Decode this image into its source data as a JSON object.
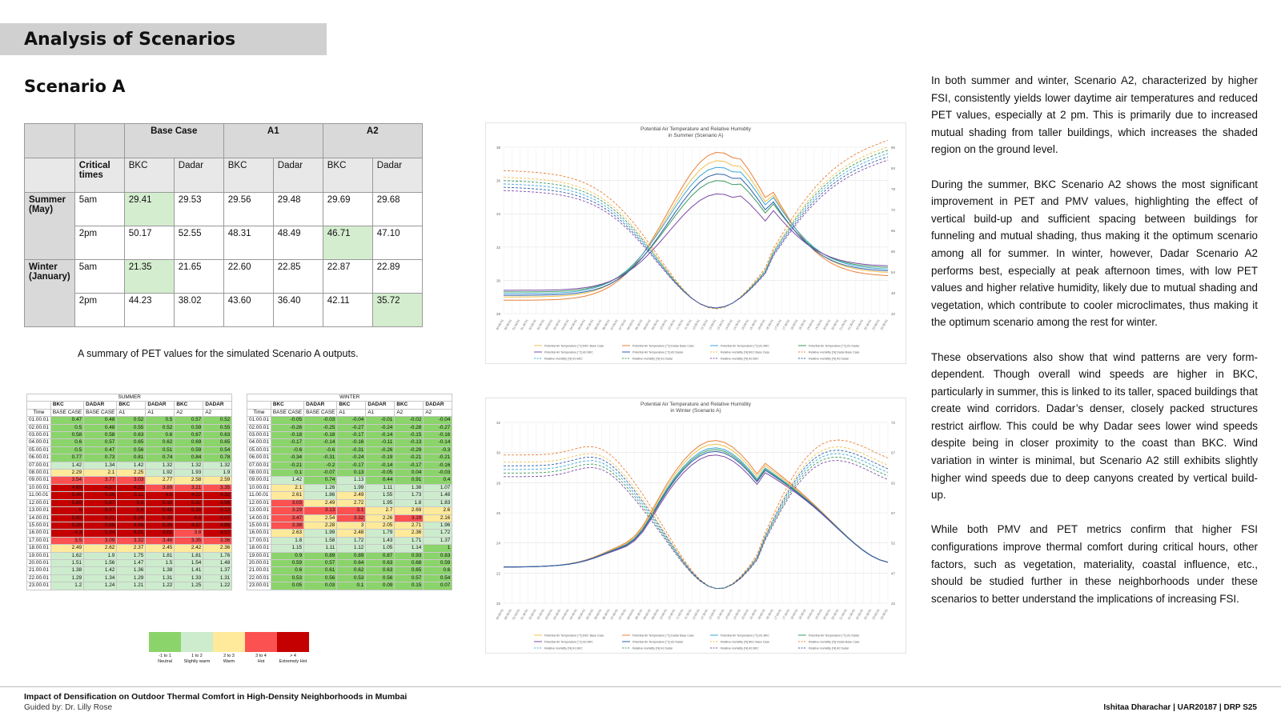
{
  "page_title": "Analysis of Scenarios",
  "section_title": "Scenario A",
  "pet_table": {
    "head1": [
      "",
      "",
      "Base Case",
      "A1",
      "A2"
    ],
    "head2": [
      "Critical times",
      "BKC",
      "Dadar",
      "BKC",
      "Dadar",
      "BKC",
      "Dadar"
    ],
    "rows": [
      {
        "season": "Summer (May)",
        "time": "5am",
        "values": [
          "29.41",
          "29.53",
          "29.56",
          "29.48",
          "29.69",
          "29.68"
        ],
        "highlight": 0
      },
      {
        "season": "",
        "time": "2pm",
        "values": [
          "50.17",
          "52.55",
          "48.31",
          "48.49",
          "46.71",
          "47.10"
        ],
        "highlight": 4
      },
      {
        "season": "Winter (January)",
        "time": "5am",
        "values": [
          "21.35",
          "21.65",
          "22.60",
          "22.85",
          "22.87",
          "22.89"
        ],
        "highlight": 0
      },
      {
        "season": "",
        "time": "2pm",
        "values": [
          "44.23",
          "38.02",
          "43.60",
          "36.40",
          "42.11",
          "35.72"
        ],
        "highlight": 5
      }
    ]
  },
  "table_caption": "A summary of PET values for the simulated Scenario A outputs.",
  "hourly_header": {
    "col1": [
      "BKC",
      "DADAR",
      "BKC",
      "DADAR",
      "BKC",
      "DADAR"
    ],
    "col2": [
      "BASE CASE",
      "BASE CASE",
      "A1",
      "A1",
      "A2",
      "A2"
    ],
    "time_label": "Time"
  },
  "summer_hourly": {
    "title": "SUMMER",
    "times": [
      "01.00.01",
      "02.00.01",
      "03.00.01",
      "04.00.01",
      "05.00.01",
      "06.00.01",
      "07.00.01",
      "08.00.01",
      "09.00.01",
      "10.00.01",
      "11.00.01",
      "12.00.01",
      "13.00.01",
      "14.00.01",
      "15.00.01",
      "16.00.01",
      "17.00.01",
      "18.00.01",
      "19.00.01",
      "20.00.01",
      "21.00.01",
      "22.00.01",
      "23.00.01"
    ],
    "values": [
      [
        "0.47",
        "0.48",
        "0.52",
        "0.5",
        "0.57",
        "0.52"
      ],
      [
        "0.5",
        "0.48",
        "0.55",
        "0.52",
        "0.59",
        "0.55"
      ],
      [
        "0.58",
        "0.58",
        "0.63",
        "0.6",
        "0.67",
        "0.63"
      ],
      [
        "0.6",
        "0.57",
        "0.65",
        "0.62",
        "0.69",
        "0.65"
      ],
      [
        "0.5",
        "0.47",
        "0.56",
        "0.51",
        "0.59",
        "0.54"
      ],
      [
        "0.77",
        "0.73",
        "0.81",
        "0.74",
        "0.84",
        "0.78"
      ],
      [
        "1.42",
        "1.34",
        "1.42",
        "1.32",
        "1.32",
        "1.32"
      ],
      [
        "2.29",
        "2.1",
        "2.25",
        "1.92",
        "1.93",
        "1.9"
      ],
      [
        "3.54",
        "3.77",
        "3.03",
        "2.77",
        "2.58",
        "2.59"
      ],
      [
        "4.69",
        "4.57",
        "4.25",
        "3.89",
        "3.21",
        "3.35"
      ],
      [
        "5.49",
        "5.36",
        "5.11",
        "4.6",
        "4.22",
        "4.32"
      ],
      [
        "5.89",
        "5.87",
        "5.6",
        "5.19",
        "5.32",
        "4.98"
      ],
      [
        "6",
        "6.07",
        "5.6",
        "5.48",
        "5.19",
        "5.13"
      ],
      [
        "5.92",
        "6.21",
        "5.26",
        "5.39",
        "4.8",
        "5.07"
      ],
      [
        "5.26",
        "5.88",
        "4.56",
        "5.36",
        "4.37",
        "4.88"
      ],
      [
        "4.3",
        "5.34",
        "4.01",
        "4.61",
        "3.8",
        "4.57"
      ],
      [
        "3.5",
        "3.09",
        "3.32",
        "3.46",
        "3.35",
        "3.36"
      ],
      [
        "2.49",
        "2.62",
        "2.37",
        "2.45",
        "2.42",
        "2.36"
      ],
      [
        "1.62",
        "1.9",
        "1.75",
        "1.81",
        "1.81",
        "1.76"
      ],
      [
        "1.51",
        "1.56",
        "1.47",
        "1.5",
        "1.54",
        "1.48"
      ],
      [
        "1.38",
        "1.42",
        "1.36",
        "1.38",
        "1.41",
        "1.37"
      ],
      [
        "1.29",
        "1.34",
        "1.29",
        "1.31",
        "1.33",
        "1.31"
      ],
      [
        "1.2",
        "1.24",
        "1.21",
        "1.22",
        "1.25",
        "1.22"
      ]
    ]
  },
  "winter_hourly": {
    "title": "WINTER",
    "times": [
      "01.00.01",
      "02.00.01",
      "03.00.01",
      "04.00.01",
      "05.00.01",
      "06.00.01",
      "07.00.01",
      "08.00.01",
      "09.00.01",
      "10.00.01",
      "11.00.01",
      "12.00.01",
      "13.00.01",
      "14.00.01",
      "15.00.01",
      "16.00.01",
      "17.00.01",
      "18.00.01",
      "19.00.01",
      "20.00.01",
      "21.00.01",
      "22.00.01",
      "23.00.01"
    ],
    "values": [
      [
        "-0.05",
        "-0.03",
        "-0.04",
        "-0.01",
        "-0.02",
        "-0.04"
      ],
      [
        "-0.26",
        "-0.25",
        "-0.27",
        "-0.24",
        "-0.28",
        "-0.27"
      ],
      [
        "-0.18",
        "-0.18",
        "-0.17",
        "-0.14",
        "-0.15",
        "-0.16"
      ],
      [
        "-0.17",
        "-0.14",
        "-0.16",
        "-0.11",
        "-0.13",
        "-0.14"
      ],
      [
        "-0.6",
        "-0.6",
        "-0.31",
        "-0.26",
        "-0.29",
        "-0.3"
      ],
      [
        "-0.34",
        "-0.31",
        "-0.24",
        "-0.19",
        "-0.21",
        "-0.21"
      ],
      [
        "-0.21",
        "-0.2",
        "-0.17",
        "-0.14",
        "-0.17",
        "-0.16"
      ],
      [
        "0.1",
        "-0.07",
        "0.13",
        "-0.05",
        "0.04",
        "-0.03"
      ],
      [
        "1.42",
        "0.74",
        "1.13",
        "0.44",
        "0.91",
        "0.4"
      ],
      [
        "2.1",
        "1.26",
        "1.99",
        "1.11",
        "1.38",
        "1.07"
      ],
      [
        "2.61",
        "1.86",
        "2.49",
        "1.55",
        "1.73",
        "1.48"
      ],
      [
        "3.03",
        "2.49",
        "2.72",
        "1.95",
        "1.8",
        "1.83"
      ],
      [
        "3.29",
        "3.13",
        "3.1",
        "2.7",
        "2.69",
        "2.6"
      ],
      [
        "3.47",
        "2.54",
        "3.32",
        "2.26",
        "3.19",
        "2.16"
      ],
      [
        "3.38",
        "2.28",
        "3",
        "2.05",
        "2.71",
        "1.96"
      ],
      [
        "2.63",
        "1.99",
        "2.48",
        "1.79",
        "2.36",
        "1.72"
      ],
      [
        "1.8",
        "1.58",
        "1.72",
        "1.43",
        "1.71",
        "1.37"
      ],
      [
        "1.15",
        "1.11",
        "1.12",
        "1.05",
        "1.14",
        "1"
      ],
      [
        "0.9",
        "0.89",
        "0.89",
        "0.87",
        "0.93",
        "0.83"
      ],
      [
        "0.59",
        "0.57",
        "0.64",
        "0.63",
        "0.68",
        "0.59"
      ],
      [
        "0.6",
        "0.61",
        "0.62",
        "0.63",
        "0.65",
        "0.6"
      ],
      [
        "0.53",
        "0.56",
        "0.53",
        "0.56",
        "0.57",
        "0.54"
      ],
      [
        "0.05",
        "0.03",
        "0.1",
        "0.09",
        "0.15",
        "0.07"
      ]
    ]
  },
  "colors": {
    "neutral": "#8bd46b",
    "slightly_warm": "#cdeccd",
    "warm": "#ffe99a",
    "hot": "#fb5151",
    "extremely_hot": "#c40000"
  },
  "legend": [
    {
      "range": "-1 to 1",
      "label": "Neutral",
      "color": "#8bd46b"
    },
    {
      "range": "1 to 2",
      "label": "Slightly warm",
      "color": "#cdeccd"
    },
    {
      "range": "2 to 3",
      "label": "Warm",
      "color": "#ffe99a"
    },
    {
      "range": "3 to 4",
      "label": "Hot",
      "color": "#fb5151"
    },
    {
      "range": "> 4",
      "label": "Extremely Hot",
      "color": "#c40000"
    }
  ],
  "chart_data": [
    {
      "type": "line",
      "title": "Potential Air Temperature and Relative Humidity",
      "subtitle": "in Summer (Scenario A)",
      "x": [
        "00:00:01",
        "00:30:01",
        "01:00:01",
        "01:30:01",
        "02:00:01",
        "02:30:01",
        "03:00:01",
        "03:30:01",
        "04:00:01",
        "04:30:01",
        "05:00:01",
        "05:30:01",
        "06:00:01",
        "06:30:01",
        "07:00:01",
        "07:30:01",
        "08:00:01",
        "08:30:01",
        "09:00:01",
        "09:30:01",
        "10:00:01",
        "10:30:01",
        "11:00:01",
        "11:30:01",
        "12:00:01",
        "12:30:01",
        "13:00:01",
        "13:30:01",
        "14:00:01",
        "14:30:01",
        "15:00:01",
        "15:30:01",
        "16:00:01",
        "16:30:01",
        "17:00:01",
        "17:30:01",
        "18:00:01",
        "18:30:01",
        "19:00:01",
        "19:30:01",
        "20:00:01",
        "20:30:01",
        "21:00:01",
        "21:30:01",
        "22:00:01",
        "22:30:01",
        "23:00:01",
        "23:30:01"
      ],
      "y_left_ticks": [
        "28",
        "30",
        "32",
        "34",
        "36",
        "38"
      ],
      "y_right_ticks": [
        "42",
        "48",
        "54",
        "60",
        "66",
        "72",
        "78",
        "84",
        "90"
      ],
      "legend": [
        "Potential Air Temperature [°C] BKC Base Case",
        "Potential Air Temperature [°C] Dadar Base Case",
        "Potential Air Temperature [°C] A1 BKC",
        "Potential Air Temperature [°C] A1 Dadar",
        "Potential Air Temperature [°C] A2 BKC",
        "Potential Air Temperature [°C] A2 Dadar",
        "Relative Humidity [%] BKC Base Case",
        "Relative Humidity [%] Dadar Base Case",
        "Relative Humidity [%] A1 BKC",
        "Relative Humidity [%] A1 Dadar",
        "Relative Humidity [%] A2 BKC",
        "Relative Humidity [%] A2 Dadar"
      ],
      "series_colors": [
        "#f2c14e",
        "#e8813a",
        "#3aa7d8",
        "#3c9a5f",
        "#7c4aa6",
        "#2e5fa8",
        "#f2c14e",
        "#e8813a",
        "#3aa7d8",
        "#3c9a5f",
        "#7c4aa6",
        "#2e5fa8"
      ],
      "temp_series": {
        "peak": [
          36.6,
          37.8,
          37.0,
          36.5,
          35.8,
          36.4
        ],
        "base_min": [
          28.4,
          28.2,
          28.5,
          28.6,
          28.7,
          28.6
        ],
        "evening": [
          29.8,
          29.7,
          29.9,
          29.8,
          29.9,
          29.7
        ]
      },
      "rh_series": {
        "start": [
          80,
          82,
          78,
          79,
          77,
          78
        ],
        "trough": [
          45,
          43,
          47,
          46,
          48,
          47
        ],
        "end": [
          70,
          72,
          69,
          68,
          71,
          70
        ]
      }
    },
    {
      "type": "line",
      "title": "Potential Air Temperature and Relative Humidity",
      "subtitle": "in Winter (Scenario A)",
      "x": [
        "00:00:01",
        "00:30:01",
        "01:00:01",
        "01:30:01",
        "02:00:01",
        "02:30:01",
        "03:00:01",
        "03:30:01",
        "04:00:01",
        "04:30:01",
        "05:00:01",
        "05:30:01",
        "06:00:01",
        "06:30:01",
        "07:00:01",
        "07:30:01",
        "08:00:01",
        "08:30:01",
        "09:00:01",
        "09:30:01",
        "10:00:01",
        "10:30:01",
        "11:00:01",
        "11:30:01",
        "12:00:01",
        "12:30:01",
        "13:00:01",
        "13:30:01",
        "14:00:01",
        "14:30:01",
        "15:00:01",
        "15:30:01",
        "16:00:01",
        "16:30:01",
        "17:00:01",
        "17:30:01",
        "18:00:01",
        "18:30:01",
        "19:00:01",
        "19:30:01",
        "20:00:01",
        "20:30:01",
        "21:00:01",
        "21:30:01",
        "22:00:01",
        "22:30:01",
        "23:00:01",
        "23:30:01"
      ],
      "y_left_ticks": [
        "20",
        "22",
        "24",
        "26",
        "28",
        "30",
        "32"
      ],
      "y_right_ticks": [
        "42",
        "47",
        "52",
        "57",
        "62",
        "67",
        "72"
      ],
      "legend": [
        "Potential Air Temperature [°C] BKC Base Case",
        "Potential Air Temperature [°C] Dadar Base Case",
        "Potential Air Temperature [°C] A1 BKC",
        "Potential Air Temperature [°C] A1 Dadar",
        "Potential Air Temperature [°C] A2 BKC",
        "Potential Air Temperature [°C] A2 Dadar",
        "Relative Humidity [%] BKC Base Case",
        "Relative Humidity [%] Dadar Base Case",
        "Relative Humidity [%] A1 BKC",
        "Relative Humidity [%] A1 Dadar",
        "Relative Humidity [%] A2 BKC",
        "Relative Humidity [%] A2 Dadar"
      ],
      "series_colors": [
        "#f2c14e",
        "#e8813a",
        "#3aa7d8",
        "#3c9a5f",
        "#7c4aa6",
        "#2e5fa8",
        "#f2c14e",
        "#e8813a",
        "#3aa7d8",
        "#3c9a5f",
        "#7c4aa6",
        "#2e5fa8"
      ]
    }
  ],
  "body_paragraphs": [
    "In both summer and winter, Scenario A2, characterized by higher FSI, consistently yields lower daytime air temperatures and reduced PET values, especially at 2 pm. This is primarily due to increased mutual shading from taller buildings, which increases the shaded region on the ground level.",
    "During the summer, BKC Scenario A2 shows the most significant improvement in PET and PMV values, highlighting the effect of vertical build-up and sufficient spacing between buildings for funneling and mutual shading, thus making it the optimum scenario among all for summer. In winter, however, Dadar Scenario A2 performs best, especially at peak afternoon times, with low PET values and higher relative humidity, likely due to mutual shading and vegetation, which contribute to cooler microclimates, thus making it the optimum scenario among the rest for winter.",
    "These observations also show that wind patterns are very form-dependent. Though overall wind speeds are higher in BKC, particularly in summer, this is linked to its taller, spaced buildings that create wind corridors. Dadar’s denser, closely packed structures restrict airflow. This could be why Dadar sees lower wind speeds despite being in closer proximity to the coast than BKC. Wind variation in winter is minimal, but Scenario A2 still exhibits slightly higher wind speeds due to deep canyons created by vertical build-up.",
    "While both PMV and PET metrics confirm that higher FSI configurations improve thermal comfort during critical hours, other factors, such as vegetation, materiality, coastal influence, etc., should be studied further in these neighborhoods under these scenarios to better understand the implications of increasing FSI."
  ],
  "footer": {
    "title": "Impact of Densification on Outdoor Thermal Comfort in High-Density Neighborhoods in Mumbai",
    "guide": "Guided by: Dr. Lilly Rose",
    "author": "Ishitaa Dharachar  |  UAR20187  |  DRP S25"
  }
}
